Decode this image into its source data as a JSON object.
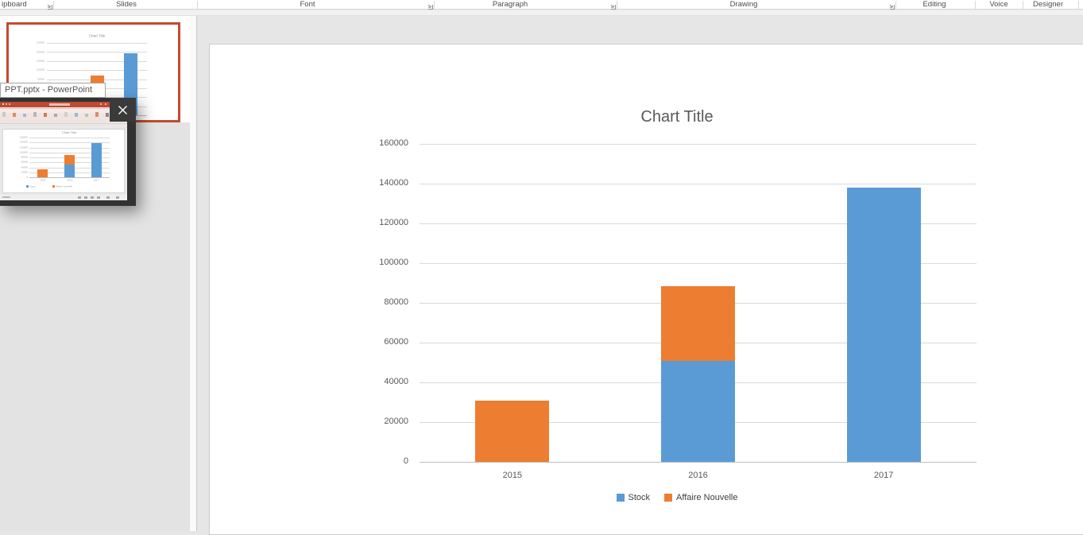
{
  "ribbon": {
    "groups": [
      {
        "label": "ipboard",
        "launcher": true
      },
      {
        "label": "Slides",
        "launcher": false
      },
      {
        "label": "Font",
        "launcher": true
      },
      {
        "label": "Paragraph",
        "launcher": true
      },
      {
        "label": "Drawing",
        "launcher": true
      },
      {
        "label": "Editing",
        "launcher": false
      },
      {
        "label": "Voice",
        "launcher": false
      },
      {
        "label": "Designer",
        "launcher": false
      }
    ]
  },
  "taskbar_preview": {
    "tooltip": "PPT.pptx - PowerPoint"
  },
  "chart_data": {
    "type": "bar",
    "stacked": true,
    "title": "Chart Title",
    "categories": [
      "2015",
      "2016",
      "2017"
    ],
    "series": [
      {
        "name": "Stock",
        "color": "#5B9BD5",
        "values": [
          0,
          51000,
          138000
        ]
      },
      {
        "name": "Affaire Nouvelle",
        "color": "#ED7D31",
        "values": [
          31000,
          37500,
          0
        ]
      }
    ],
    "ylim": [
      0,
      160000
    ],
    "ytick_step": 20000,
    "yticks": [
      "0",
      "20000",
      "40000",
      "60000",
      "80000",
      "100000",
      "120000",
      "140000",
      "160000"
    ],
    "grid": true,
    "legend_position": "bottom",
    "title_color": "#595959",
    "axis_label_color": "#595959",
    "gridline_color": "#D9D9D9"
  }
}
